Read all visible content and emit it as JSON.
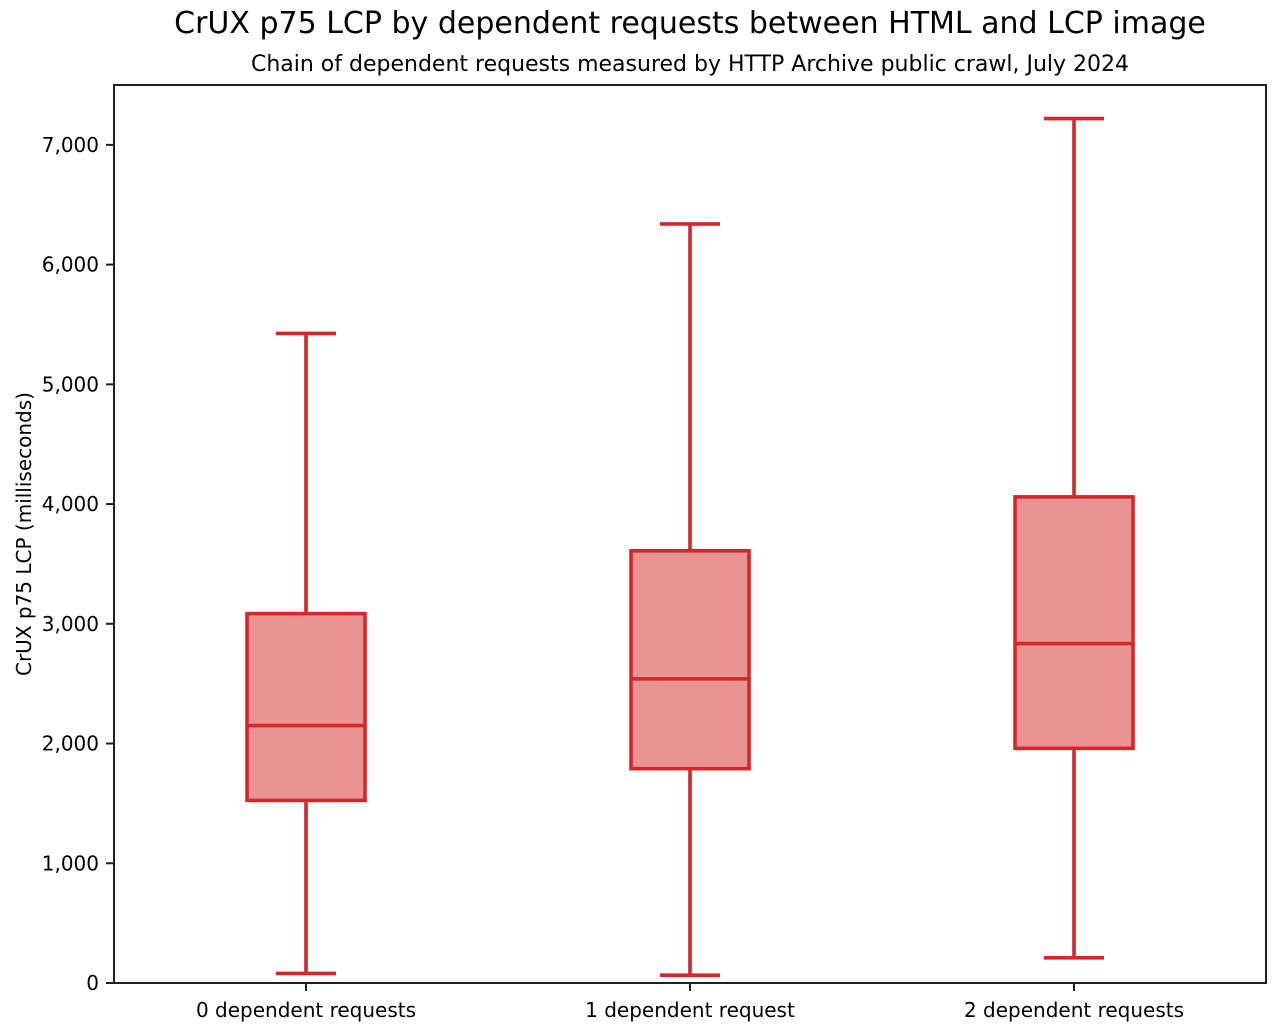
{
  "title": "CrUX p75 LCP by dependent requests between HTML and LCP image",
  "subtitle": "Chain of dependent requests measured by HTTP Archive public crawl, July 2024",
  "chart_data": {
    "type": "boxplot",
    "title": "CrUX p75 LCP by dependent requests between HTML and LCP image",
    "subtitle": "Chain of dependent requests measured by HTTP Archive public crawl, July 2024",
    "xlabel": "",
    "ylabel": "CrUX p75 LCP (milliseconds)",
    "categories": [
      "0 dependent requests",
      "1 dependent request",
      "2 dependent requests"
    ],
    "series": [
      {
        "name": "0 dependent requests",
        "whisker_low": 80,
        "q1": 1525,
        "median": 2150,
        "q3": 3085,
        "whisker_high": 5425
      },
      {
        "name": "1 dependent request",
        "whisker_low": 65,
        "q1": 1790,
        "median": 2540,
        "q3": 3610,
        "whisker_high": 6340
      },
      {
        "name": "2 dependent requests",
        "whisker_low": 210,
        "q1": 1960,
        "median": 2835,
        "q3": 4060,
        "whisker_high": 7220
      }
    ],
    "ylim": [
      0,
      7500
    ],
    "yticks": [
      0,
      1000,
      2000,
      3000,
      4000,
      5000,
      6000,
      7000
    ],
    "ytick_labels": [
      "0",
      "1,000",
      "2,000",
      "3,000",
      "4,000",
      "5,000",
      "6,000",
      "7,000"
    ],
    "grid": false,
    "legend": "none",
    "colors": {
      "box_edge": "#d62728",
      "box_fill": "#ea9393",
      "axis": "#1f1f1f",
      "text": "#000000",
      "background": "#ffffff"
    }
  }
}
